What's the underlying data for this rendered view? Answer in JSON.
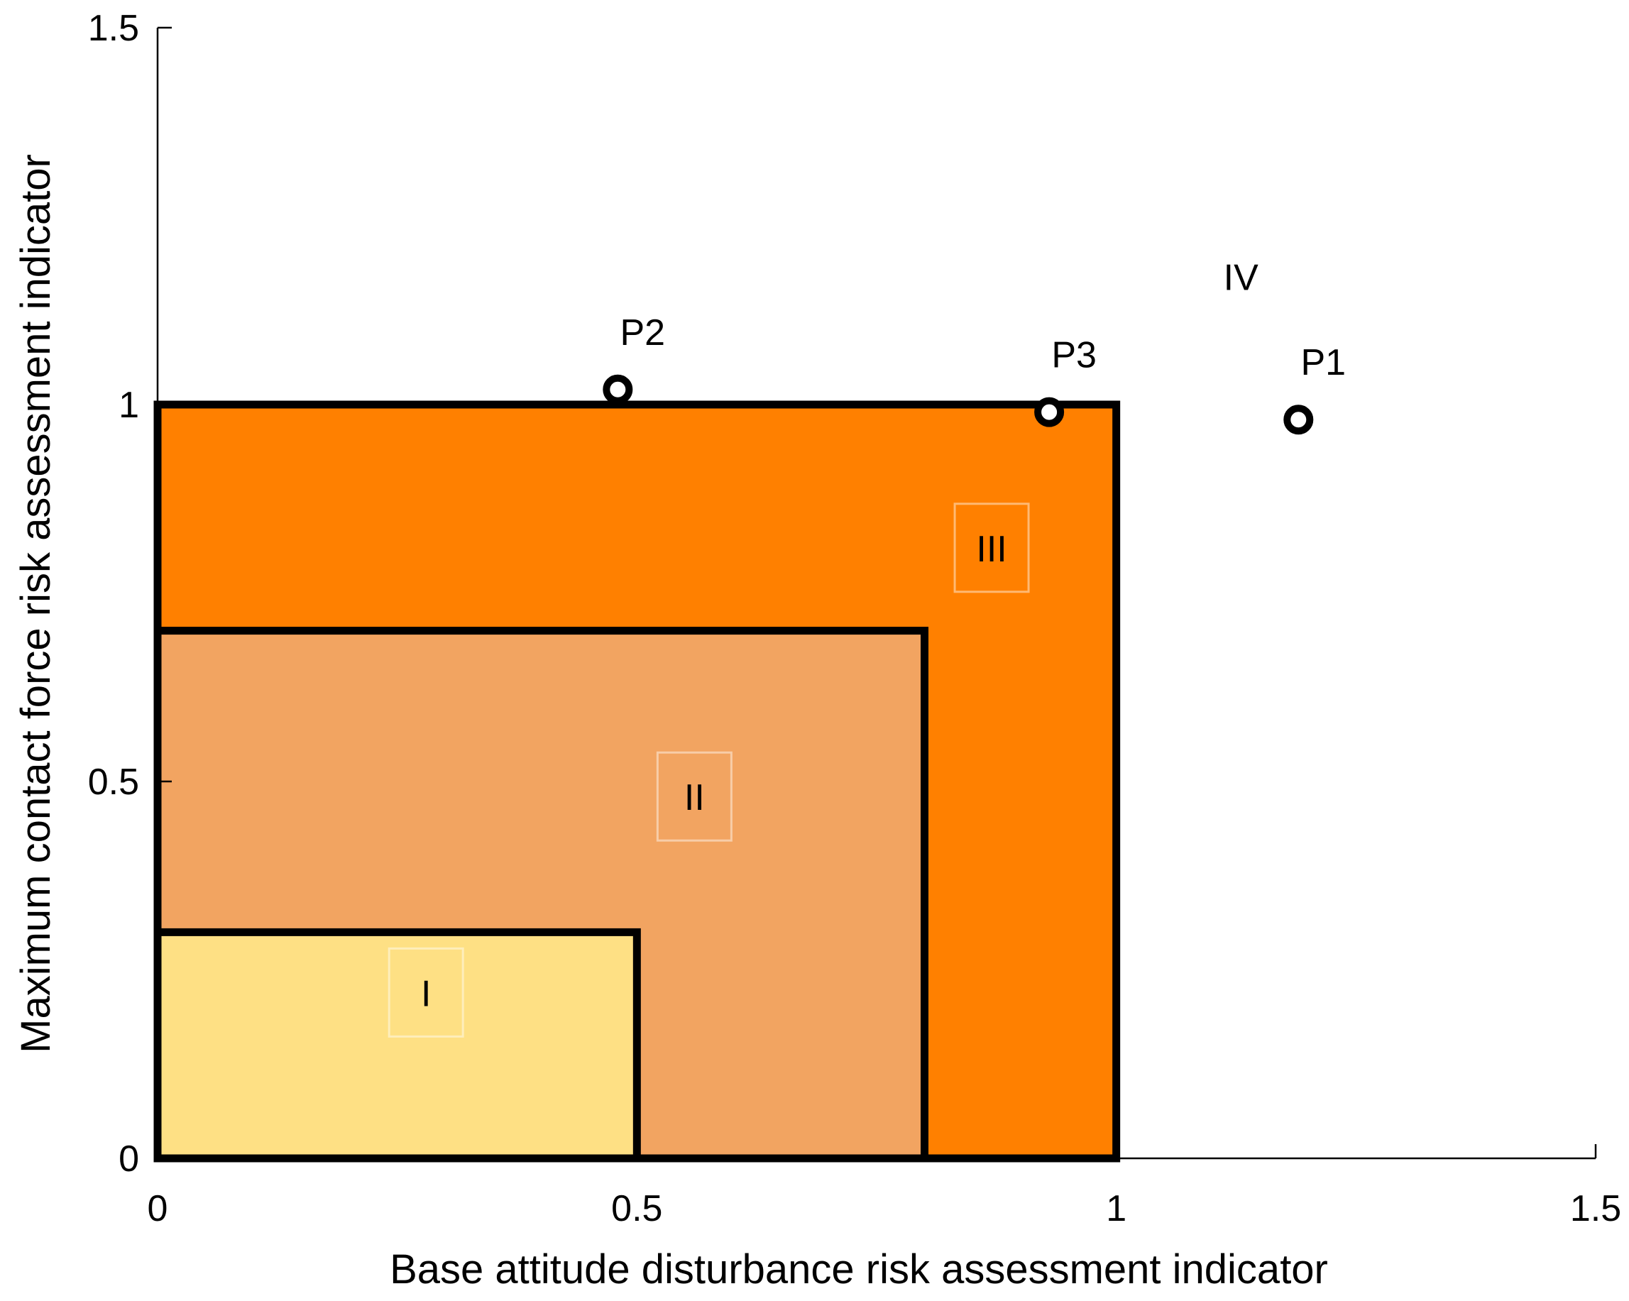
{
  "chart_data": {
    "type": "scatter",
    "title": "",
    "xlabel": "Base attitude disturbance risk assessment indicator",
    "ylabel": "Maximum contact force risk assessment indicator",
    "xlim": [
      0,
      1.5
    ],
    "ylim": [
      0,
      1.5
    ],
    "x_ticks": [
      0,
      0.5,
      1,
      1.5
    ],
    "x_tick_labels": [
      "0",
      "0.5",
      "1",
      "1.5"
    ],
    "y_ticks": [
      0,
      0.5,
      1,
      1.5
    ],
    "y_tick_labels": [
      "0",
      "0.5",
      "1",
      "1.5"
    ],
    "grid": false,
    "regions": [
      {
        "label": "III",
        "x_range": [
          0,
          1.0
        ],
        "y_range": [
          0,
          1.0
        ],
        "color": "#FF8000",
        "label_at": [
          0.87,
          0.81
        ]
      },
      {
        "label": "II",
        "x_range": [
          0,
          0.8
        ],
        "y_range": [
          0,
          0.7
        ],
        "color": "#F2A461",
        "label_at": [
          0.56,
          0.48
        ]
      },
      {
        "label": "I",
        "x_range": [
          0,
          0.5
        ],
        "y_range": [
          0,
          0.3
        ],
        "color": "#FEE084",
        "label_at": [
          0.28,
          0.22
        ]
      },
      {
        "label": "IV",
        "label_at": [
          1.13,
          1.17
        ]
      }
    ],
    "points": [
      {
        "label": "P1",
        "x": 1.19,
        "y": 0.98
      },
      {
        "label": "P2",
        "x": 0.48,
        "y": 1.02
      },
      {
        "label": "P3",
        "x": 0.93,
        "y": 0.99
      }
    ]
  }
}
